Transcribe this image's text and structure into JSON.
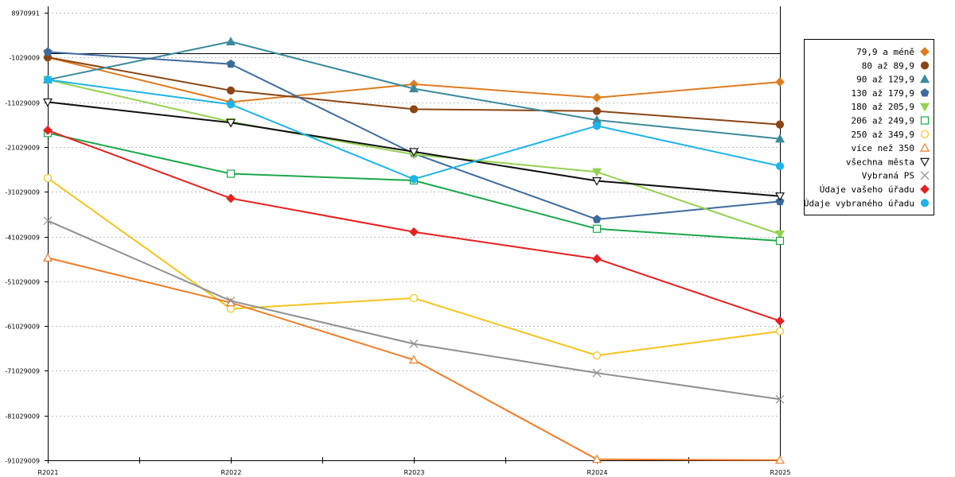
{
  "chart_data": {
    "type": "line",
    "title": "",
    "xlabel": "",
    "ylabel": "",
    "categories": [
      "R2021",
      "R2022",
      "R2023",
      "R2024",
      "R2025"
    ],
    "ylim": [
      -91029009,
      8970991
    ],
    "y_ticks": [
      8970991,
      -1029009,
      -11029009,
      -21029009,
      -31029009,
      -41029009,
      -51029009,
      -61029009,
      -71029009,
      -81029009,
      -91029009
    ],
    "y_tick_labels": [
      "8970991",
      "-1029009",
      "-11029009",
      "-21029009",
      "-31029009",
      "-41029009",
      "-51029009",
      "-61029009",
      "-71029009",
      "-81029009",
      "-91029009"
    ],
    "reference_line": 0,
    "grid": true,
    "legend_position": "right",
    "series": [
      {
        "name": "79,9 a méně",
        "color": "#e07b1f",
        "marker": "diamond",
        "filled": true,
        "values": [
          -1000000,
          -11000000,
          -7000000,
          -10000000,
          -6500000
        ]
      },
      {
        "name": "80 až 89,9",
        "color": "#8b4513",
        "marker": "circle",
        "filled": true,
        "values": [
          -1000000,
          -8400000,
          -12600000,
          -13000000,
          -16000000
        ]
      },
      {
        "name": "90 až 129,9",
        "color": "#3a8a9c",
        "marker": "triangle-up",
        "filled": true,
        "values": [
          -6000000,
          2500000,
          -8000000,
          -15000000,
          -19200000
        ]
      },
      {
        "name": "130 až 179,9",
        "color": "#3d6a9e",
        "marker": "pentagon",
        "filled": true,
        "values": [
          200000,
          -2500000,
          -22500000,
          -37200000,
          -33200000
        ]
      },
      {
        "name": "180 až 205,9",
        "color": "#94d150",
        "marker": "triangle-down",
        "filled": true,
        "values": [
          -6000000,
          -15400000,
          -22700000,
          -26600000,
          -40500000
        ]
      },
      {
        "name": "206 až 249,9",
        "color": "#1aa84a",
        "marker": "square",
        "filled": false,
        "values": [
          -17900000,
          -27000000,
          -28500000,
          -39300000,
          -42000000
        ]
      },
      {
        "name": "250 až 349,9",
        "color": "#f5c41c",
        "marker": "circle",
        "filled": false,
        "values": [
          -28000000,
          -57200000,
          -54800000,
          -67600000,
          -62200000
        ]
      },
      {
        "name": "více než 350",
        "color": "#f07c27",
        "marker": "triangle-up",
        "filled": false,
        "values": [
          -45800000,
          -55800000,
          -68600000,
          -90800000,
          -91000000
        ]
      },
      {
        "name": "všechna města",
        "color": "#111111",
        "marker": "triangle-down",
        "filled": false,
        "values": [
          -11000000,
          -15600000,
          -22100000,
          -28600000,
          -32000000
        ]
      },
      {
        "name": "Vybraná PS",
        "color": "#909090",
        "marker": "x",
        "filled": false,
        "values": [
          -37500000,
          -55400000,
          -65000000,
          -71500000,
          -77400000
        ]
      },
      {
        "name": "Údaje vašeho úřadu",
        "color": "#e8201f",
        "marker": "diamond",
        "filled": true,
        "values": [
          -17300000,
          -32500000,
          -40000000,
          -46000000,
          -59900000
        ]
      },
      {
        "name": "Údaje vybraného úřadu",
        "color": "#1db4ea",
        "marker": "circle",
        "filled": true,
        "values": [
          -6000000,
          -11500000,
          -28200000,
          -16300000,
          -25300000
        ]
      }
    ]
  }
}
